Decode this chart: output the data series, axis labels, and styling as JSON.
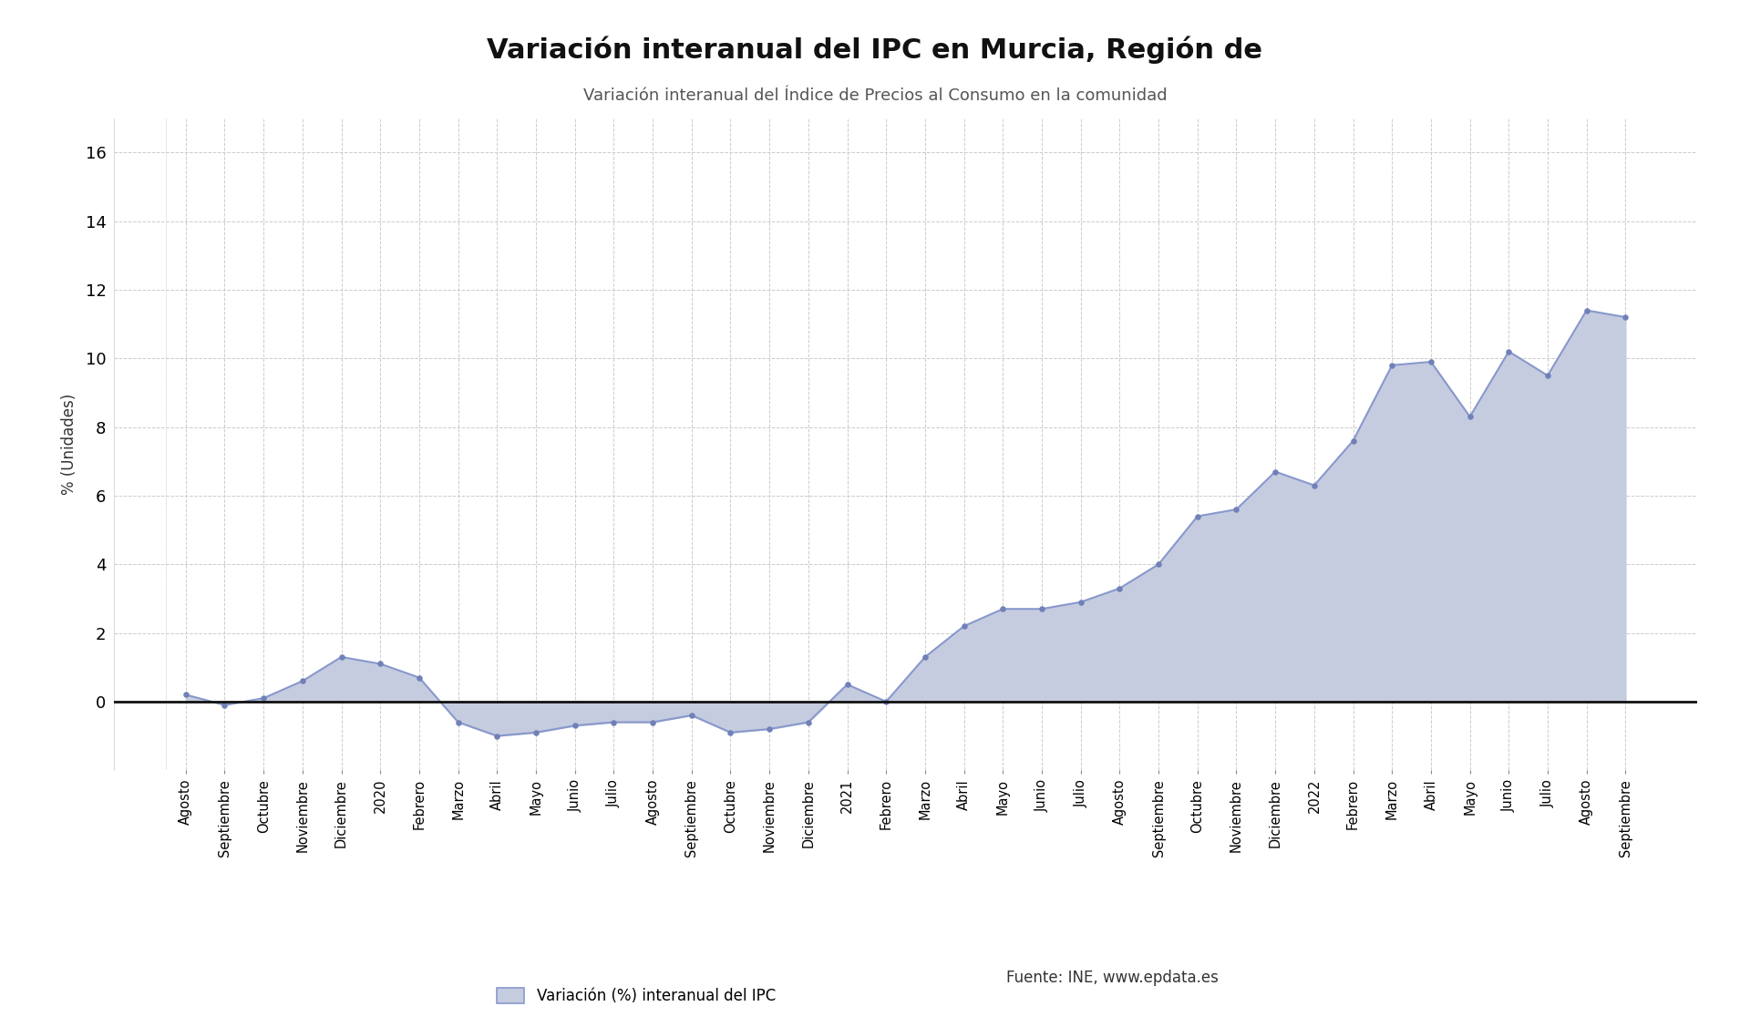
{
  "title": "Variación interanual del IPC en Murcia, Región de",
  "subtitle": "Variación interanual del Índice de Precios al Consumo en la comunidad",
  "ylabel": "% (Unidades)",
  "legend_label": "Variación (%) interanual del IPC",
  "source_text": "Fuente: INE, www.epdata.es",
  "x_labels": [
    "Agosto",
    "Septiembre",
    "Octubre",
    "Noviembre",
    "Diciembre",
    "2020",
    "Febrero",
    "Marzo",
    "Abril",
    "Mayo",
    "Junio",
    "Julio",
    "Agosto",
    "Septiembre",
    "Octubre",
    "Noviembre",
    "Diciembre",
    "2021",
    "Febrero",
    "Marzo",
    "Abril",
    "Mayo",
    "Junio",
    "Julio",
    "Agosto",
    "Septiembre",
    "Octubre",
    "Noviembre",
    "Diciembre",
    "2022",
    "Febrero",
    "Marzo",
    "Abril",
    "Mayo",
    "Junio",
    "Julio",
    "Agosto",
    "Septiembre"
  ],
  "values": [
    0.2,
    -0.1,
    0.1,
    0.6,
    1.3,
    1.1,
    0.7,
    -0.6,
    -1.0,
    -0.9,
    -0.7,
    -0.6,
    -0.6,
    -0.4,
    -0.9,
    -0.8,
    -0.6,
    0.5,
    0.0,
    1.3,
    2.2,
    2.7,
    2.7,
    2.9,
    3.3,
    4.0,
    5.4,
    5.6,
    6.7,
    6.3,
    7.6,
    9.8,
    9.9,
    8.3,
    10.2,
    9.5,
    11.4,
    11.2
  ],
  "line_color": "#8898cc",
  "fill_color": "#c5ccdf",
  "marker_color": "#7080b8",
  "background_color": "#ffffff",
  "grid_color": "#cccccc",
  "zero_line_color": "#111111",
  "ylim": [
    -2,
    17
  ],
  "yticks": [
    0,
    2,
    4,
    6,
    8,
    10,
    12,
    14,
    16
  ]
}
